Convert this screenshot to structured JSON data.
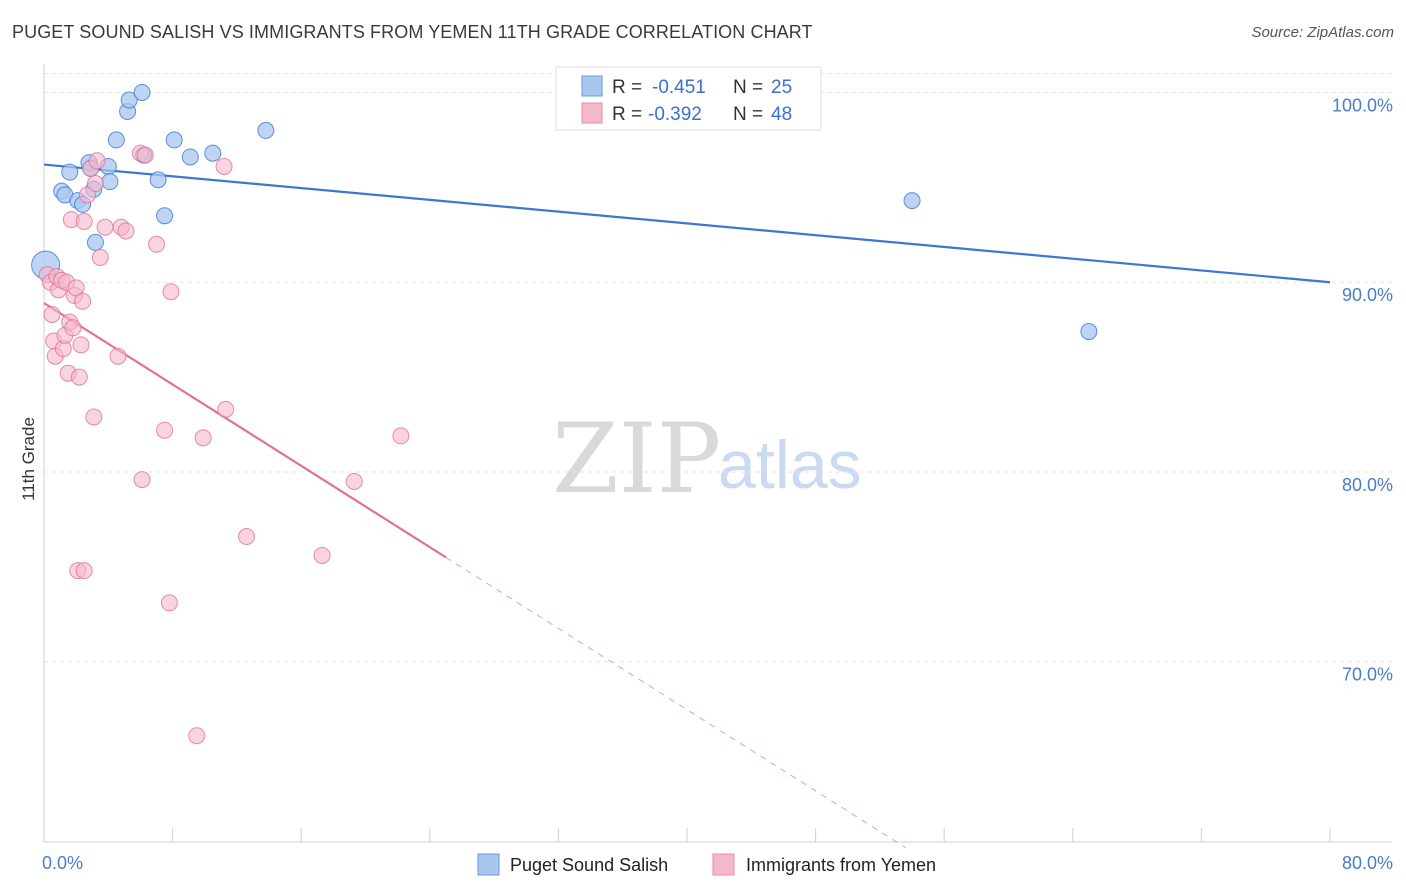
{
  "header": {
    "title": "PUGET SOUND SALISH VS IMMIGRANTS FROM YEMEN 11TH GRADE CORRELATION CHART",
    "source": "Source: ZipAtlas.com"
  },
  "legend_box": {
    "rows": [
      {
        "r_label": "R =",
        "r_value": "-0.451",
        "n_label": "N =",
        "n_value": "25",
        "color": "#a9c6ef"
      },
      {
        "r_label": "R =",
        "r_value": "-0.392",
        "n_label": "N =",
        "n_value": "48",
        "color": "#f5b8cb"
      }
    ]
  },
  "bottom_legend": {
    "items": [
      {
        "label": "Puget Sound Salish",
        "color": "#a9c6ef"
      },
      {
        "label": "Immigrants from Yemen",
        "color": "#f5b8cb"
      }
    ]
  },
  "watermark": {
    "part1": "ZIP",
    "part2": "atlas"
  },
  "chart_data": {
    "type": "scatter",
    "title": "PUGET SOUND SALISH VS IMMIGRANTS FROM YEMEN 11TH GRADE CORRELATION CHART",
    "xlabel": "",
    "ylabel": "11th Grade",
    "xlim": [
      0,
      80
    ],
    "ylim": [
      60.5,
      101.5
    ],
    "x_tick_labels": [
      "0.0%",
      "80.0%"
    ],
    "y_ticks": [
      70,
      80,
      90,
      100
    ],
    "y_tick_labels": [
      "70.0%",
      "80.0%",
      "90.0%",
      "100.0%"
    ],
    "grid": true,
    "legend_position": "bottom",
    "series": [
      {
        "name": "Puget Sound Salish",
        "color": "#3b78d4",
        "fill": "#a9c6ef",
        "points": [
          [
            0.1,
            90.9
          ],
          [
            1.1,
            94.8
          ],
          [
            1.3,
            94.6
          ],
          [
            1.6,
            95.8
          ],
          [
            2.1,
            94.3
          ],
          [
            2.4,
            94.1
          ],
          [
            2.8,
            96.3
          ],
          [
            2.9,
            96.0
          ],
          [
            3.1,
            94.9
          ],
          [
            3.2,
            92.1
          ],
          [
            4.0,
            96.1
          ],
          [
            4.1,
            95.3
          ],
          [
            4.5,
            97.5
          ],
          [
            5.2,
            99.0
          ],
          [
            5.3,
            99.6
          ],
          [
            6.1,
            100.0
          ],
          [
            6.2,
            96.7
          ],
          [
            7.1,
            95.4
          ],
          [
            7.5,
            93.5
          ],
          [
            8.1,
            97.5
          ],
          [
            9.1,
            96.6
          ],
          [
            10.5,
            96.8
          ],
          [
            13.8,
            98.0
          ],
          [
            54.0,
            94.3
          ],
          [
            65.0,
            87.4
          ]
        ],
        "trend": {
          "x": [
            0,
            80
          ],
          "y": [
            96.2,
            90.0
          ],
          "style": "solid"
        }
      },
      {
        "name": "Immigrants from Yemen",
        "color": "#e0719a",
        "fill": "#f5b8cb",
        "points": [
          [
            0.2,
            90.4
          ],
          [
            0.4,
            90.0
          ],
          [
            0.5,
            88.3
          ],
          [
            0.6,
            86.9
          ],
          [
            0.7,
            86.1
          ],
          [
            0.8,
            90.3
          ],
          [
            0.9,
            89.6
          ],
          [
            1.1,
            90.1
          ],
          [
            1.2,
            86.5
          ],
          [
            1.3,
            87.2
          ],
          [
            1.4,
            90.0
          ],
          [
            1.5,
            85.2
          ],
          [
            1.6,
            87.9
          ],
          [
            1.7,
            93.3
          ],
          [
            1.8,
            87.6
          ],
          [
            1.9,
            89.3
          ],
          [
            2.0,
            89.7
          ],
          [
            2.1,
            74.8
          ],
          [
            2.2,
            85.0
          ],
          [
            2.3,
            86.7
          ],
          [
            2.4,
            89.0
          ],
          [
            2.5,
            93.2
          ],
          [
            2.5,
            74.8
          ],
          [
            2.7,
            94.6
          ],
          [
            2.9,
            96.0
          ],
          [
            3.1,
            82.9
          ],
          [
            3.2,
            95.2
          ],
          [
            3.3,
            96.4
          ],
          [
            3.5,
            91.3
          ],
          [
            3.8,
            92.9
          ],
          [
            4.6,
            86.1
          ],
          [
            4.8,
            92.9
          ],
          [
            5.1,
            92.7
          ],
          [
            6.0,
            96.8
          ],
          [
            6.1,
            79.6
          ],
          [
            6.3,
            96.7
          ],
          [
            7.0,
            92.0
          ],
          [
            7.5,
            82.2
          ],
          [
            7.8,
            73.1
          ],
          [
            7.9,
            89.5
          ],
          [
            9.5,
            66.1
          ],
          [
            9.9,
            81.8
          ],
          [
            11.2,
            96.1
          ],
          [
            11.3,
            83.3
          ],
          [
            12.6,
            76.6
          ],
          [
            17.3,
            75.6
          ],
          [
            19.3,
            79.5
          ],
          [
            22.2,
            81.9
          ]
        ],
        "trend": {
          "x": [
            0,
            25
          ],
          "y": [
            88.9,
            75.5
          ],
          "style": "solid",
          "extension": {
            "x": [
              25,
              53.6
            ],
            "y": [
              75.5,
              60.2
            ],
            "style": "dashed"
          }
        }
      }
    ]
  }
}
